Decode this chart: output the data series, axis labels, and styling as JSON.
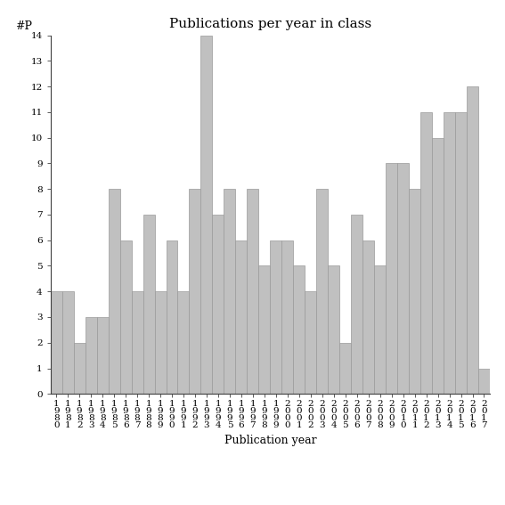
{
  "years": [
    1980,
    1981,
    1982,
    1983,
    1984,
    1985,
    1986,
    1987,
    1988,
    1989,
    1990,
    1991,
    1992,
    1993,
    1994,
    1995,
    1996,
    1997,
    1998,
    1999,
    2000,
    2001,
    2002,
    2003,
    2004,
    2005,
    2006,
    2007,
    2008,
    2009,
    2010,
    2011,
    2012,
    2013,
    2014,
    2015,
    2016,
    2017
  ],
  "values": [
    4,
    4,
    2,
    3,
    3,
    8,
    6,
    4,
    7,
    4,
    6,
    4,
    8,
    14,
    7,
    8,
    6,
    8,
    5,
    6,
    6,
    5,
    4,
    8,
    5,
    2,
    7,
    6,
    5,
    9,
    9,
    8,
    11,
    10,
    11,
    11,
    12,
    1
  ],
  "bar_color": "#c0c0c0",
  "bar_edgecolor": "#999999",
  "title": "Publications per year in class",
  "xlabel": "Publication year",
  "ylabel": "#P",
  "ylim": [
    0,
    14
  ],
  "yticks": [
    0,
    1,
    2,
    3,
    4,
    5,
    6,
    7,
    8,
    9,
    10,
    11,
    12,
    13,
    14
  ],
  "background_color": "#ffffff",
  "title_fontsize": 11,
  "axis_fontsize": 9,
  "tick_fontsize": 7.5
}
